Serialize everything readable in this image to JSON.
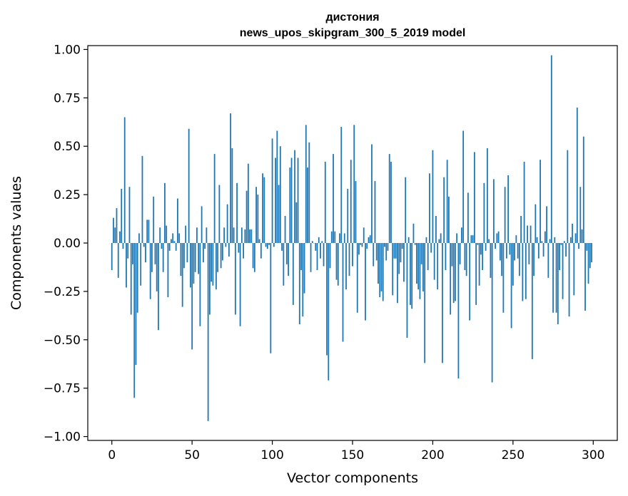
{
  "chart_data": {
    "type": "bar",
    "title": "дистония",
    "subtitle": "news_upos_skipgram_300_5_2019 model",
    "xlabel": "Vector components",
    "ylabel": "Components values",
    "xlim": [
      -15,
      315
    ],
    "ylim": [
      -1.02,
      1.02
    ],
    "xticks": [
      0,
      50,
      100,
      150,
      200,
      250,
      300
    ],
    "xtick_labels": [
      "0",
      "50",
      "100",
      "150",
      "200",
      "250",
      "300"
    ],
    "yticks": [
      1.0,
      0.75,
      0.5,
      0.25,
      0.0,
      -0.25,
      -0.5,
      -0.75,
      -1.0
    ],
    "ytick_labels": [
      "1.00",
      "0.75",
      "0.50",
      "0.25",
      "0.00",
      "−0.25",
      "−0.50",
      "−0.75",
      "−1.00"
    ],
    "bar_color": "#1f77b4",
    "grid": false,
    "values": [
      -0.14,
      0.13,
      0.08,
      0.18,
      -0.18,
      0.06,
      0.28,
      -0.03,
      0.65,
      -0.23,
      -0.08,
      0.29,
      -0.37,
      -0.11,
      -0.8,
      -0.63,
      -0.36,
      0.05,
      -0.22,
      0.45,
      -0.02,
      -0.1,
      0.12,
      0.12,
      -0.29,
      -0.15,
      0.24,
      -0.11,
      -0.25,
      -0.45,
      0.08,
      -0.03,
      -0.15,
      0.31,
      0.09,
      -0.28,
      -0.04,
      0.02,
      0.05,
      0.01,
      -0.04,
      0.23,
      0.05,
      -0.17,
      -0.33,
      -0.13,
      0.09,
      -0.1,
      0.59,
      -0.23,
      -0.55,
      -0.21,
      -0.15,
      0.08,
      -0.16,
      -0.43,
      0.19,
      -0.1,
      -0.03,
      0.08,
      -0.92,
      -0.37,
      -0.2,
      -0.22,
      0.46,
      -0.24,
      -0.15,
      0.3,
      -0.13,
      -0.09,
      0.08,
      -0.02,
      0.2,
      -0.07,
      0.67,
      0.49,
      0.08,
      -0.37,
      0.31,
      -0.05,
      -0.43,
      0.08,
      -0.08,
      0.07,
      0.27,
      0.41,
      0.07,
      0.07,
      -0.13,
      -0.15,
      0.29,
      0.25,
      0.02,
      -0.08,
      0.36,
      0.34,
      -0.02,
      -0.03,
      -0.01,
      -0.57,
      0.54,
      -0.02,
      0.44,
      0.58,
      0.3,
      0.5,
      -0.04,
      -0.22,
      0.14,
      -0.11,
      -0.17,
      0.39,
      0.44,
      -0.32,
      0.48,
      0.21,
      0.44,
      -0.42,
      -0.14,
      -0.38,
      -0.26,
      0.61,
      0.39,
      0.52,
      -0.15,
      0.01,
      0.0,
      -0.04,
      -0.14,
      0.03,
      -0.08,
      0.01,
      -0.12,
      0.42,
      -0.58,
      -0.71,
      -0.13,
      0.06,
      0.46,
      0.06,
      -0.19,
      -0.22,
      0.05,
      0.6,
      -0.51,
      0.05,
      -0.24,
      0.28,
      -0.17,
      0.43,
      -0.12,
      0.61,
      0.32,
      -0.36,
      -0.06,
      -0.01,
      -0.02,
      0.08,
      -0.4,
      -0.03,
      0.03,
      0.04,
      0.51,
      -0.12,
      0.32,
      -0.09,
      -0.21,
      -0.28,
      -0.25,
      -0.3,
      -0.02,
      -0.09,
      -0.04,
      0.46,
      0.42,
      -0.27,
      -0.08,
      -0.08,
      -0.31,
      -0.16,
      -0.1,
      -0.03,
      -0.2,
      0.34,
      -0.49,
      0.03,
      -0.32,
      -0.34,
      0.1,
      -0.01,
      -0.21,
      -0.24,
      -0.29,
      -0.11,
      -0.25,
      -0.62,
      0.03,
      -0.14,
      0.36,
      -0.05,
      0.48,
      -0.19,
      0.14,
      -0.24,
      0.02,
      0.05,
      -0.62,
      0.34,
      -0.14,
      0.43,
      0.24,
      -0.37,
      -0.12,
      -0.31,
      -0.3,
      0.05,
      -0.7,
      -0.11,
      0.08,
      0.58,
      -0.14,
      -0.17,
      0.26,
      -0.4,
      0.04,
      0.04,
      0.47,
      -0.32,
      -0.01,
      -0.22,
      -0.06,
      -0.14,
      0.31,
      -0.04,
      0.49,
      0.02,
      -0.18,
      -0.72,
      0.33,
      -0.03,
      0.05,
      0.06,
      -0.09,
      -0.17,
      -0.36,
      0.29,
      -0.08,
      0.35,
      -0.06,
      -0.44,
      -0.22,
      -0.09,
      0.04,
      -0.08,
      -0.17,
      0.14,
      -0.3,
      0.42,
      -0.29,
      0.09,
      -0.11,
      0.09,
      -0.6,
      -0.17,
      0.2,
      0.03,
      -0.08,
      0.43,
      0.01,
      -0.07,
      0.06,
      0.19,
      -0.18,
      0.02,
      0.97,
      -0.36,
      0.03,
      -0.36,
      -0.42,
      -0.14,
      -0.01,
      -0.29,
      0.01,
      -0.07,
      0.48,
      -0.38,
      0.03,
      0.1,
      -0.27,
      0.05,
      0.7,
      -0.03,
      0.29,
      0.07,
      0.55,
      -0.35,
      -0.04,
      -0.21,
      -0.13,
      -0.1
    ]
  }
}
